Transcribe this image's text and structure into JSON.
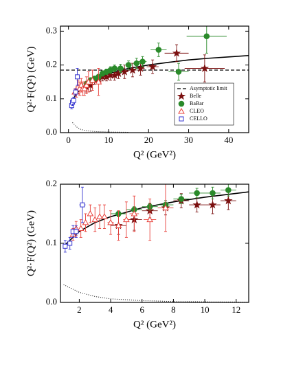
{
  "chart_data": [
    {
      "type": "scatter",
      "x_label": "Q² (GeV²)",
      "y_label": "Q²·F(Q²) (GeV)",
      "xlim": [
        -2,
        45
      ],
      "ylim": [
        0,
        0.315
      ],
      "xticks": [
        0,
        10,
        20,
        30,
        40
      ],
      "yticks": [
        {
          "value": 0,
          "label": "0.0"
        },
        0.1,
        0.2,
        0.3
      ],
      "legend": "lower right",
      "series": [
        {
          "kind": "curve",
          "line": "solid",
          "color": "#000000",
          "x": [
            1,
            2,
            3,
            5,
            7,
            10,
            15,
            20,
            25,
            30,
            35,
            40,
            45
          ],
          "values": [
            0.095,
            0.115,
            0.128,
            0.145,
            0.16,
            0.175,
            0.19,
            0.2,
            0.208,
            0.215,
            0.22,
            0.224,
            0.228
          ]
        },
        {
          "kind": "curve",
          "line": "dotted",
          "color": "#000000",
          "x": [
            1,
            2,
            3,
            4,
            5,
            7,
            10,
            15
          ],
          "values": [
            0.03,
            0.017,
            0.01,
            0.007,
            0.005,
            0.003,
            0.002,
            0.001
          ]
        },
        {
          "kind": "hline",
          "name": "Asymptotic limit",
          "line": "dashed",
          "color": "#000000",
          "value": 0.185
        },
        {
          "kind": "points",
          "name": "Belle",
          "marker": "star",
          "filled": true,
          "color": "#7b1010",
          "x": [
            4.5,
            5.5,
            6.5,
            7.5,
            8.5,
            9.5,
            10.5,
            11.5,
            12.5,
            14,
            16,
            18,
            21,
            27,
            34
          ],
          "xerr": [
            0.5,
            0.5,
            0.5,
            0.5,
            0.5,
            0.5,
            0.5,
            0.5,
            0.5,
            1,
            1,
            1,
            1.5,
            3,
            5
          ],
          "values": [
            0.135,
            0.14,
            0.155,
            0.16,
            0.165,
            0.165,
            0.17,
            0.17,
            0.175,
            0.18,
            0.185,
            0.19,
            0.195,
            0.235,
            0.19
          ],
          "errors": [
            0.015,
            0.018,
            0.012,
            0.012,
            0.012,
            0.012,
            0.015,
            0.015,
            0.015,
            0.02,
            0.02,
            0.02,
            0.02,
            0.025,
            0.04
          ]
        },
        {
          "kind": "points",
          "name": "BaBar",
          "marker": "circle",
          "filled": true,
          "color": "#2a8a2a",
          "x": [
            4.5,
            5.5,
            6.5,
            7.5,
            8.5,
            9.5,
            10.5,
            11.5,
            13,
            15,
            17,
            18.5,
            22.5,
            27.5,
            34.5
          ],
          "xerr": [
            0.5,
            0.5,
            0.5,
            0.5,
            0.5,
            0.5,
            0.5,
            0.5,
            1,
            1,
            1,
            1,
            2,
            2.5,
            5
          ],
          "values": [
            0.145,
            0.155,
            0.16,
            0.165,
            0.175,
            0.18,
            0.185,
            0.19,
            0.19,
            0.2,
            0.205,
            0.21,
            0.245,
            0.18,
            0.285
          ],
          "errors": [
            0.005,
            0.005,
            0.006,
            0.007,
            0.008,
            0.008,
            0.01,
            0.01,
            0.012,
            0.012,
            0.015,
            0.015,
            0.02,
            0.025,
            0.05
          ]
        },
        {
          "kind": "points",
          "name": "CLEO",
          "marker": "triangle",
          "filled": false,
          "color": "#e8403a",
          "x": [
            1.6,
            2,
            2.4,
            2.8,
            3.2,
            3.6,
            4,
            4.5,
            5,
            6,
            7.5
          ],
          "xerr": [
            0.2,
            0.2,
            0.2,
            0.2,
            0.2,
            0.2,
            0.3,
            0.3,
            0.3,
            0.5,
            0.8
          ],
          "values": [
            0.12,
            0.12,
            0.135,
            0.13,
            0.14,
            0.13,
            0.13,
            0.14,
            0.15,
            0.155,
            0.15
          ],
          "errors": [
            0.01,
            0.015,
            0.02,
            0.02,
            0.02,
            0.02,
            0.02,
            0.025,
            0.03,
            0.03,
            0.04
          ]
        },
        {
          "kind": "points",
          "name": "CELLO",
          "marker": "square",
          "filled": false,
          "color": "#3535d0",
          "x": [
            0.8,
            1,
            1.3,
            1.8,
            2.2
          ],
          "xerr": [
            0.2,
            0.2,
            0.2,
            0.3,
            0.4
          ],
          "values": [
            0.08,
            0.09,
            0.095,
            0.12,
            0.165
          ],
          "errors": [
            0.01,
            0.01,
            0.01,
            0.01,
            0.025
          ]
        }
      ]
    },
    {
      "type": "scatter",
      "x_label": "Q² (GeV²)",
      "y_label": "Q²·F(Q²) (GeV)",
      "xlim": [
        0.8,
        12.8
      ],
      "ylim": [
        0,
        0.2
      ],
      "xticks": [
        2,
        4,
        6,
        8,
        10,
        12
      ],
      "yticks": [
        {
          "value": 0,
          "label": "0.0"
        },
        0.1,
        0.2
      ],
      "series": [
        {
          "kind": "curve",
          "line": "solid",
          "color": "#000000",
          "x": [
            1,
            2,
            3,
            4,
            6,
            8,
            10,
            12.8
          ],
          "values": [
            0.095,
            0.12,
            0.135,
            0.145,
            0.16,
            0.17,
            0.178,
            0.187
          ]
        },
        {
          "kind": "curve",
          "line": "dotted",
          "color": "#000000",
          "x": [
            1,
            2,
            3,
            4,
            6,
            8,
            10,
            12.8
          ],
          "values": [
            0.03,
            0.017,
            0.01,
            0.006,
            0.003,
            0.0015,
            0.001,
            0.0005
          ]
        },
        {
          "kind": "points",
          "marker": "star",
          "filled": true,
          "color": "#7b1010",
          "x": [
            4.5,
            5.5,
            6.5,
            7.5,
            8.5,
            9.5,
            10.5,
            11.5
          ],
          "xerr": [
            0.5,
            0.5,
            0.5,
            0.5,
            0.5,
            0.5,
            0.5,
            0.5
          ],
          "values": [
            0.13,
            0.14,
            0.155,
            0.16,
            0.172,
            0.165,
            0.165,
            0.172
          ],
          "errors": [
            0.015,
            0.018,
            0.012,
            0.012,
            0.012,
            0.012,
            0.015,
            0.015
          ]
        },
        {
          "kind": "points",
          "marker": "circle",
          "filled": true,
          "color": "#2a8a2a",
          "x": [
            4.5,
            5.5,
            6.5,
            7.5,
            8.5,
            9.5,
            10.5,
            11.5
          ],
          "xerr": [
            0.5,
            0.5,
            0.5,
            0.5,
            0.5,
            0.5,
            0.5,
            0.5
          ],
          "values": [
            0.15,
            0.157,
            0.162,
            0.165,
            0.175,
            0.185,
            0.185,
            0.19
          ],
          "errors": [
            0.005,
            0.005,
            0.006,
            0.007,
            0.008,
            0.008,
            0.01,
            0.01
          ]
        },
        {
          "kind": "points",
          "marker": "triangle",
          "filled": false,
          "color": "#e8403a",
          "x": [
            1.6,
            1.8,
            2.1,
            2.4,
            2.7,
            3,
            3.3,
            3.6,
            4,
            4.5,
            5,
            5.5,
            6.5,
            7.5
          ],
          "xerr": [
            0.1,
            0.1,
            0.1,
            0.1,
            0.1,
            0.1,
            0.1,
            0.1,
            0.2,
            0.2,
            0.2,
            0.3,
            0.4,
            0.5
          ],
          "values": [
            0.115,
            0.125,
            0.125,
            0.135,
            0.15,
            0.14,
            0.145,
            0.145,
            0.135,
            0.13,
            0.14,
            0.15,
            0.14,
            0.16
          ],
          "errors": [
            0.01,
            0.012,
            0.015,
            0.015,
            0.015,
            0.02,
            0.02,
            0.02,
            0.02,
            0.025,
            0.03,
            0.03,
            0.035,
            0.04
          ]
        },
        {
          "kind": "points",
          "marker": "square",
          "filled": false,
          "color": "#3535d0",
          "x": [
            1.1,
            1.4,
            1.6,
            1.8,
            2.2
          ],
          "xerr": [
            0.1,
            0.1,
            0.1,
            0.15,
            0.2
          ],
          "values": [
            0.095,
            0.1,
            0.12,
            0.12,
            0.165
          ],
          "errors": [
            0.01,
            0.01,
            0.01,
            0.01,
            0.03
          ]
        }
      ]
    }
  ]
}
